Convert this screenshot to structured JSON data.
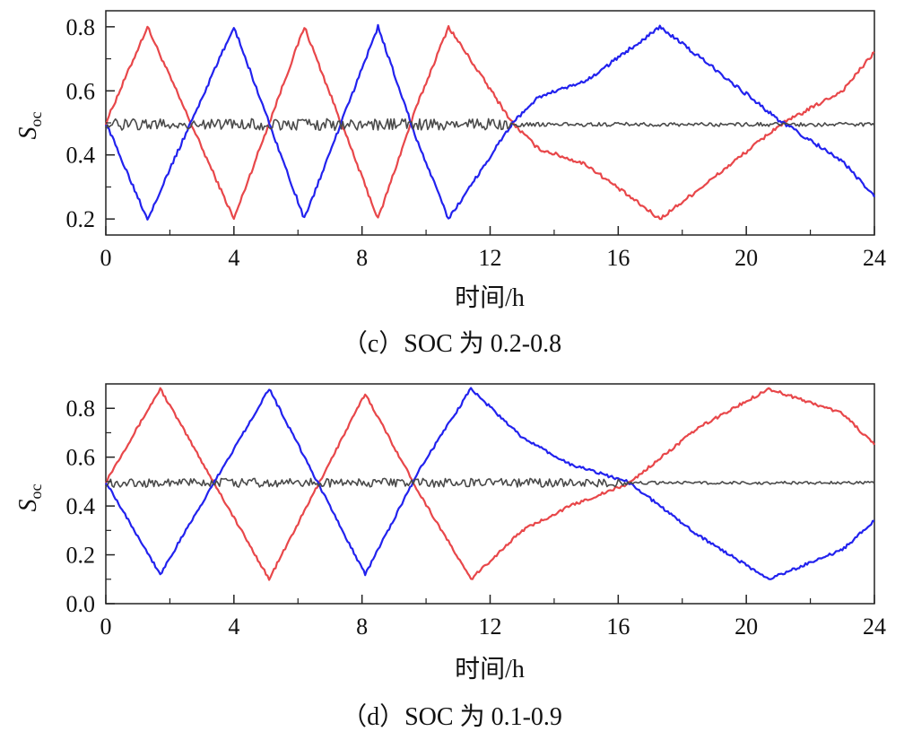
{
  "chart_data": [
    {
      "type": "line",
      "caption": "（c）SOC 为 0.2-0.8",
      "xlabel": "时间/h",
      "ylabel": {
        "base": "S",
        "sub": "oc"
      },
      "xlim": [
        0,
        24
      ],
      "ylim": [
        0.15,
        0.85
      ],
      "xticks": [
        0,
        4,
        8,
        12,
        16,
        20,
        24
      ],
      "yticks": [
        0.2,
        0.4,
        0.6,
        0.8
      ],
      "xtick_labels": [
        "0",
        "4",
        "8",
        "12",
        "16",
        "20",
        "24"
      ],
      "ytick_labels": [
        "0.2",
        "0.4",
        "0.6",
        "0.8"
      ],
      "grid": false,
      "series": [
        {
          "color": "#e8474a",
          "x": [
            0,
            1.3,
            4.0,
            6.2,
            8.5,
            9.7,
            10.7,
            12.7,
            13.5,
            15.0,
            17.3,
            19.0,
            21.0,
            23.0,
            24.0
          ],
          "y": [
            0.5,
            0.8,
            0.2,
            0.8,
            0.2,
            0.55,
            0.8,
            0.5,
            0.42,
            0.37,
            0.2,
            0.33,
            0.49,
            0.6,
            0.72
          ]
        },
        {
          "color": "#2222ee",
          "x": [
            0,
            1.3,
            4.0,
            6.2,
            8.5,
            9.7,
            10.7,
            12.7,
            13.5,
            15.0,
            17.3,
            19.0,
            21.0,
            23.0,
            24.0
          ],
          "y": [
            0.5,
            0.2,
            0.8,
            0.2,
            0.8,
            0.45,
            0.2,
            0.5,
            0.58,
            0.63,
            0.8,
            0.67,
            0.51,
            0.38,
            0.27
          ]
        },
        {
          "color": "#4a4a4a",
          "noise": true,
          "mean": 0.495,
          "amp_early": 0.018,
          "amp_late": 0.006,
          "calm_after": 12.7
        }
      ]
    },
    {
      "type": "line",
      "caption": "（d）SOC 为 0.1-0.9",
      "xlabel": "时间/h",
      "ylabel": {
        "base": "S",
        "sub": "oc"
      },
      "xlim": [
        0,
        24
      ],
      "ylim": [
        0.0,
        0.9
      ],
      "xticks": [
        0,
        4,
        8,
        12,
        16,
        20,
        24
      ],
      "yticks": [
        0.0,
        0.2,
        0.4,
        0.6,
        0.8
      ],
      "xtick_labels": [
        "0",
        "4",
        "8",
        "12",
        "16",
        "20",
        "24"
      ],
      "ytick_labels": [
        "0.0",
        "0.2",
        "0.4",
        "0.6",
        "0.8"
      ],
      "grid": false,
      "series": [
        {
          "color": "#e8474a",
          "x": [
            0,
            1.7,
            5.1,
            8.1,
            9.8,
            11.4,
            13.0,
            14.5,
            16.3,
            18.5,
            20.7,
            23.0,
            24.0
          ],
          "y": [
            0.5,
            0.88,
            0.1,
            0.86,
            0.45,
            0.1,
            0.3,
            0.4,
            0.49,
            0.72,
            0.88,
            0.78,
            0.65
          ]
        },
        {
          "color": "#2222ee",
          "x": [
            0,
            1.7,
            5.1,
            8.1,
            9.8,
            11.4,
            13.0,
            14.5,
            16.3,
            18.5,
            20.7,
            23.0,
            24.0
          ],
          "y": [
            0.5,
            0.12,
            0.88,
            0.12,
            0.55,
            0.88,
            0.68,
            0.57,
            0.5,
            0.28,
            0.1,
            0.22,
            0.34
          ]
        },
        {
          "color": "#4a4a4a",
          "noise": true,
          "mean": 0.495,
          "amp_early": 0.018,
          "amp_late": 0.006,
          "calm_after": 16.3
        }
      ]
    }
  ]
}
